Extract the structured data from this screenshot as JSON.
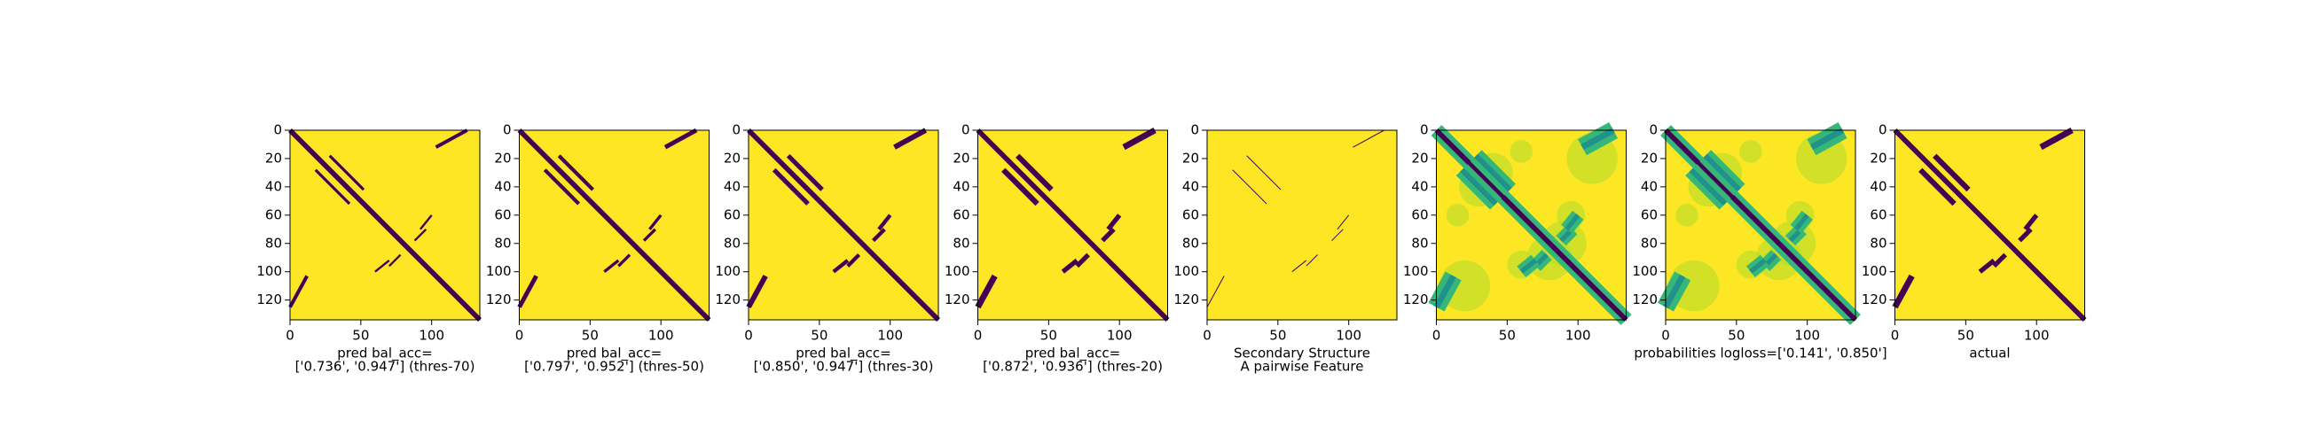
{
  "chart_data": [
    {
      "type": "heatmap",
      "xlabel": [
        "pred bal_acc=",
        "['0.736', '0.947'] (thres-70)"
      ],
      "xlim": [
        0,
        134
      ],
      "ylim": [
        134,
        0
      ],
      "xticks": [
        0,
        50,
        100
      ],
      "yticks": [
        0,
        20,
        40,
        60,
        80,
        100,
        120
      ]
    },
    {
      "type": "heatmap",
      "xlabel": [
        "pred bal_acc=",
        "['0.797', '0.952'] (thres-50)"
      ],
      "xlim": [
        0,
        134
      ],
      "ylim": [
        134,
        0
      ],
      "xticks": [
        0,
        50,
        100
      ],
      "yticks": [
        0,
        20,
        40,
        60,
        80,
        100,
        120
      ]
    },
    {
      "type": "heatmap",
      "xlabel": [
        "pred bal_acc=",
        "['0.850', '0.947'] (thres-30)"
      ],
      "xlim": [
        0,
        134
      ],
      "ylim": [
        134,
        0
      ],
      "xticks": [
        0,
        50,
        100
      ],
      "yticks": [
        0,
        20,
        40,
        60,
        80,
        100,
        120
      ]
    },
    {
      "type": "heatmap",
      "xlabel": [
        "pred bal_acc=",
        "['0.872', '0.936'] (thres-20)"
      ],
      "xlim": [
        0,
        134
      ],
      "ylim": [
        134,
        0
      ],
      "xticks": [
        0,
        50,
        100
      ],
      "yticks": [
        0,
        20,
        40,
        60,
        80,
        100,
        120
      ]
    },
    {
      "type": "heatmap",
      "xlabel": [
        "Secondary Structure",
        "A pairwise Feature"
      ],
      "xlim": [
        0,
        134
      ],
      "ylim": [
        134,
        0
      ],
      "xticks": [
        0,
        50,
        100
      ],
      "yticks": [
        0,
        20,
        40,
        60,
        80,
        100,
        120
      ]
    },
    {
      "type": "heatmap",
      "xlabel": [],
      "xlim": [
        0,
        134
      ],
      "ylim": [
        134,
        0
      ],
      "xticks": [
        0,
        50,
        100
      ],
      "yticks": [
        0,
        20,
        40,
        60,
        80,
        100,
        120
      ]
    },
    {
      "type": "heatmap",
      "xlabel": [
        "probabilities logloss=['0.141', '0.850']"
      ],
      "xlim": [
        0,
        134
      ],
      "ylim": [
        134,
        0
      ],
      "xticks": [
        0,
        50,
        100
      ],
      "yticks": [
        0,
        20,
        40,
        60,
        80,
        100,
        120
      ]
    },
    {
      "type": "heatmap",
      "xlabel": [
        "actual"
      ],
      "xlim": [
        0,
        134
      ],
      "ylim": [
        134,
        0
      ],
      "xticks": [
        0,
        50,
        100
      ],
      "yticks": [
        0,
        20,
        40,
        60,
        80,
        100,
        120
      ]
    }
  ]
}
